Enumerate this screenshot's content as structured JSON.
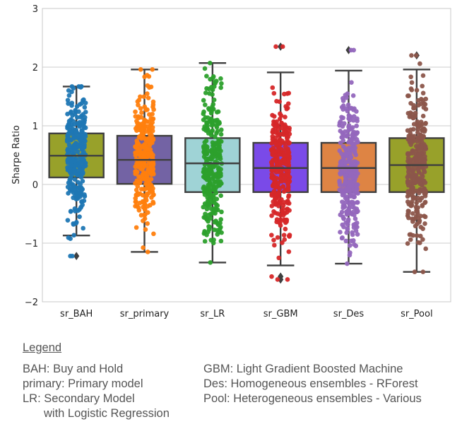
{
  "chart_data": {
    "type": "box",
    "ylabel": "Sharpe Ratio",
    "ylim": [
      -2,
      3
    ],
    "yticks": [
      -2,
      -1,
      0,
      1,
      2,
      3
    ],
    "ytick_labels": [
      "−2",
      "−1",
      "0",
      "1",
      "2",
      "3"
    ],
    "grid": true,
    "categories": [
      "sr_BAH",
      "sr_primary",
      "sr_LR",
      "sr_GBM",
      "sr_Des",
      "sr_Pool"
    ],
    "series": [
      {
        "box_color": "#98a12a",
        "point_color": "#1f77b4",
        "whisker_low": -0.87,
        "q1": 0.12,
        "median": 0.49,
        "q3": 0.87,
        "whisker_high": 1.67,
        "points_min": -1.22,
        "points_max": 1.67,
        "outliers": [
          -1.22
        ]
      },
      {
        "box_color": "#7363a4",
        "point_color": "#ff7f0e",
        "whisker_low": -1.15,
        "q1": 0.01,
        "median": 0.42,
        "q3": 0.83,
        "whisker_high": 1.96,
        "points_min": -1.15,
        "points_max": 1.96,
        "outliers": []
      },
      {
        "box_color": "#9fd3d6",
        "point_color": "#2ca02c",
        "whisker_low": -1.33,
        "q1": -0.13,
        "median": 0.36,
        "q3": 0.79,
        "whisker_high": 2.07,
        "points_min": -1.33,
        "points_max": 2.07,
        "outliers": []
      },
      {
        "box_color": "#7a4ae8",
        "point_color": "#d62728",
        "whisker_low": -1.38,
        "q1": -0.13,
        "median": 0.28,
        "q3": 0.71,
        "whisker_high": 1.91,
        "points_min": -1.62,
        "points_max": 2.35,
        "outliers": [
          2.35,
          -1.57,
          -1.62
        ]
      },
      {
        "box_color": "#de8444",
        "point_color": "#9467bd",
        "whisker_low": -1.35,
        "q1": -0.13,
        "median": 0.28,
        "q3": 0.71,
        "whisker_high": 1.94,
        "points_min": -1.35,
        "points_max": 2.29,
        "outliers": [
          2.29
        ]
      },
      {
        "box_color": "#98a12a",
        "point_color": "#8c564b",
        "whisker_low": -1.49,
        "q1": -0.13,
        "median": 0.33,
        "q3": 0.79,
        "whisker_high": 1.96,
        "points_min": -1.49,
        "points_max": 2.2,
        "outliers": [
          2.2
        ]
      }
    ]
  },
  "legend": {
    "title": "Legend",
    "left": [
      "BAH: Buy and Hold",
      "primary: Primary model",
      "LR: Secondary Model",
      "with Logistic Regression"
    ],
    "right": [
      "GBM: Light Gradient Boosted Machine",
      "Des: Homogeneous ensembles - RForest",
      "Pool: Heterogeneous ensembles - Various"
    ]
  }
}
